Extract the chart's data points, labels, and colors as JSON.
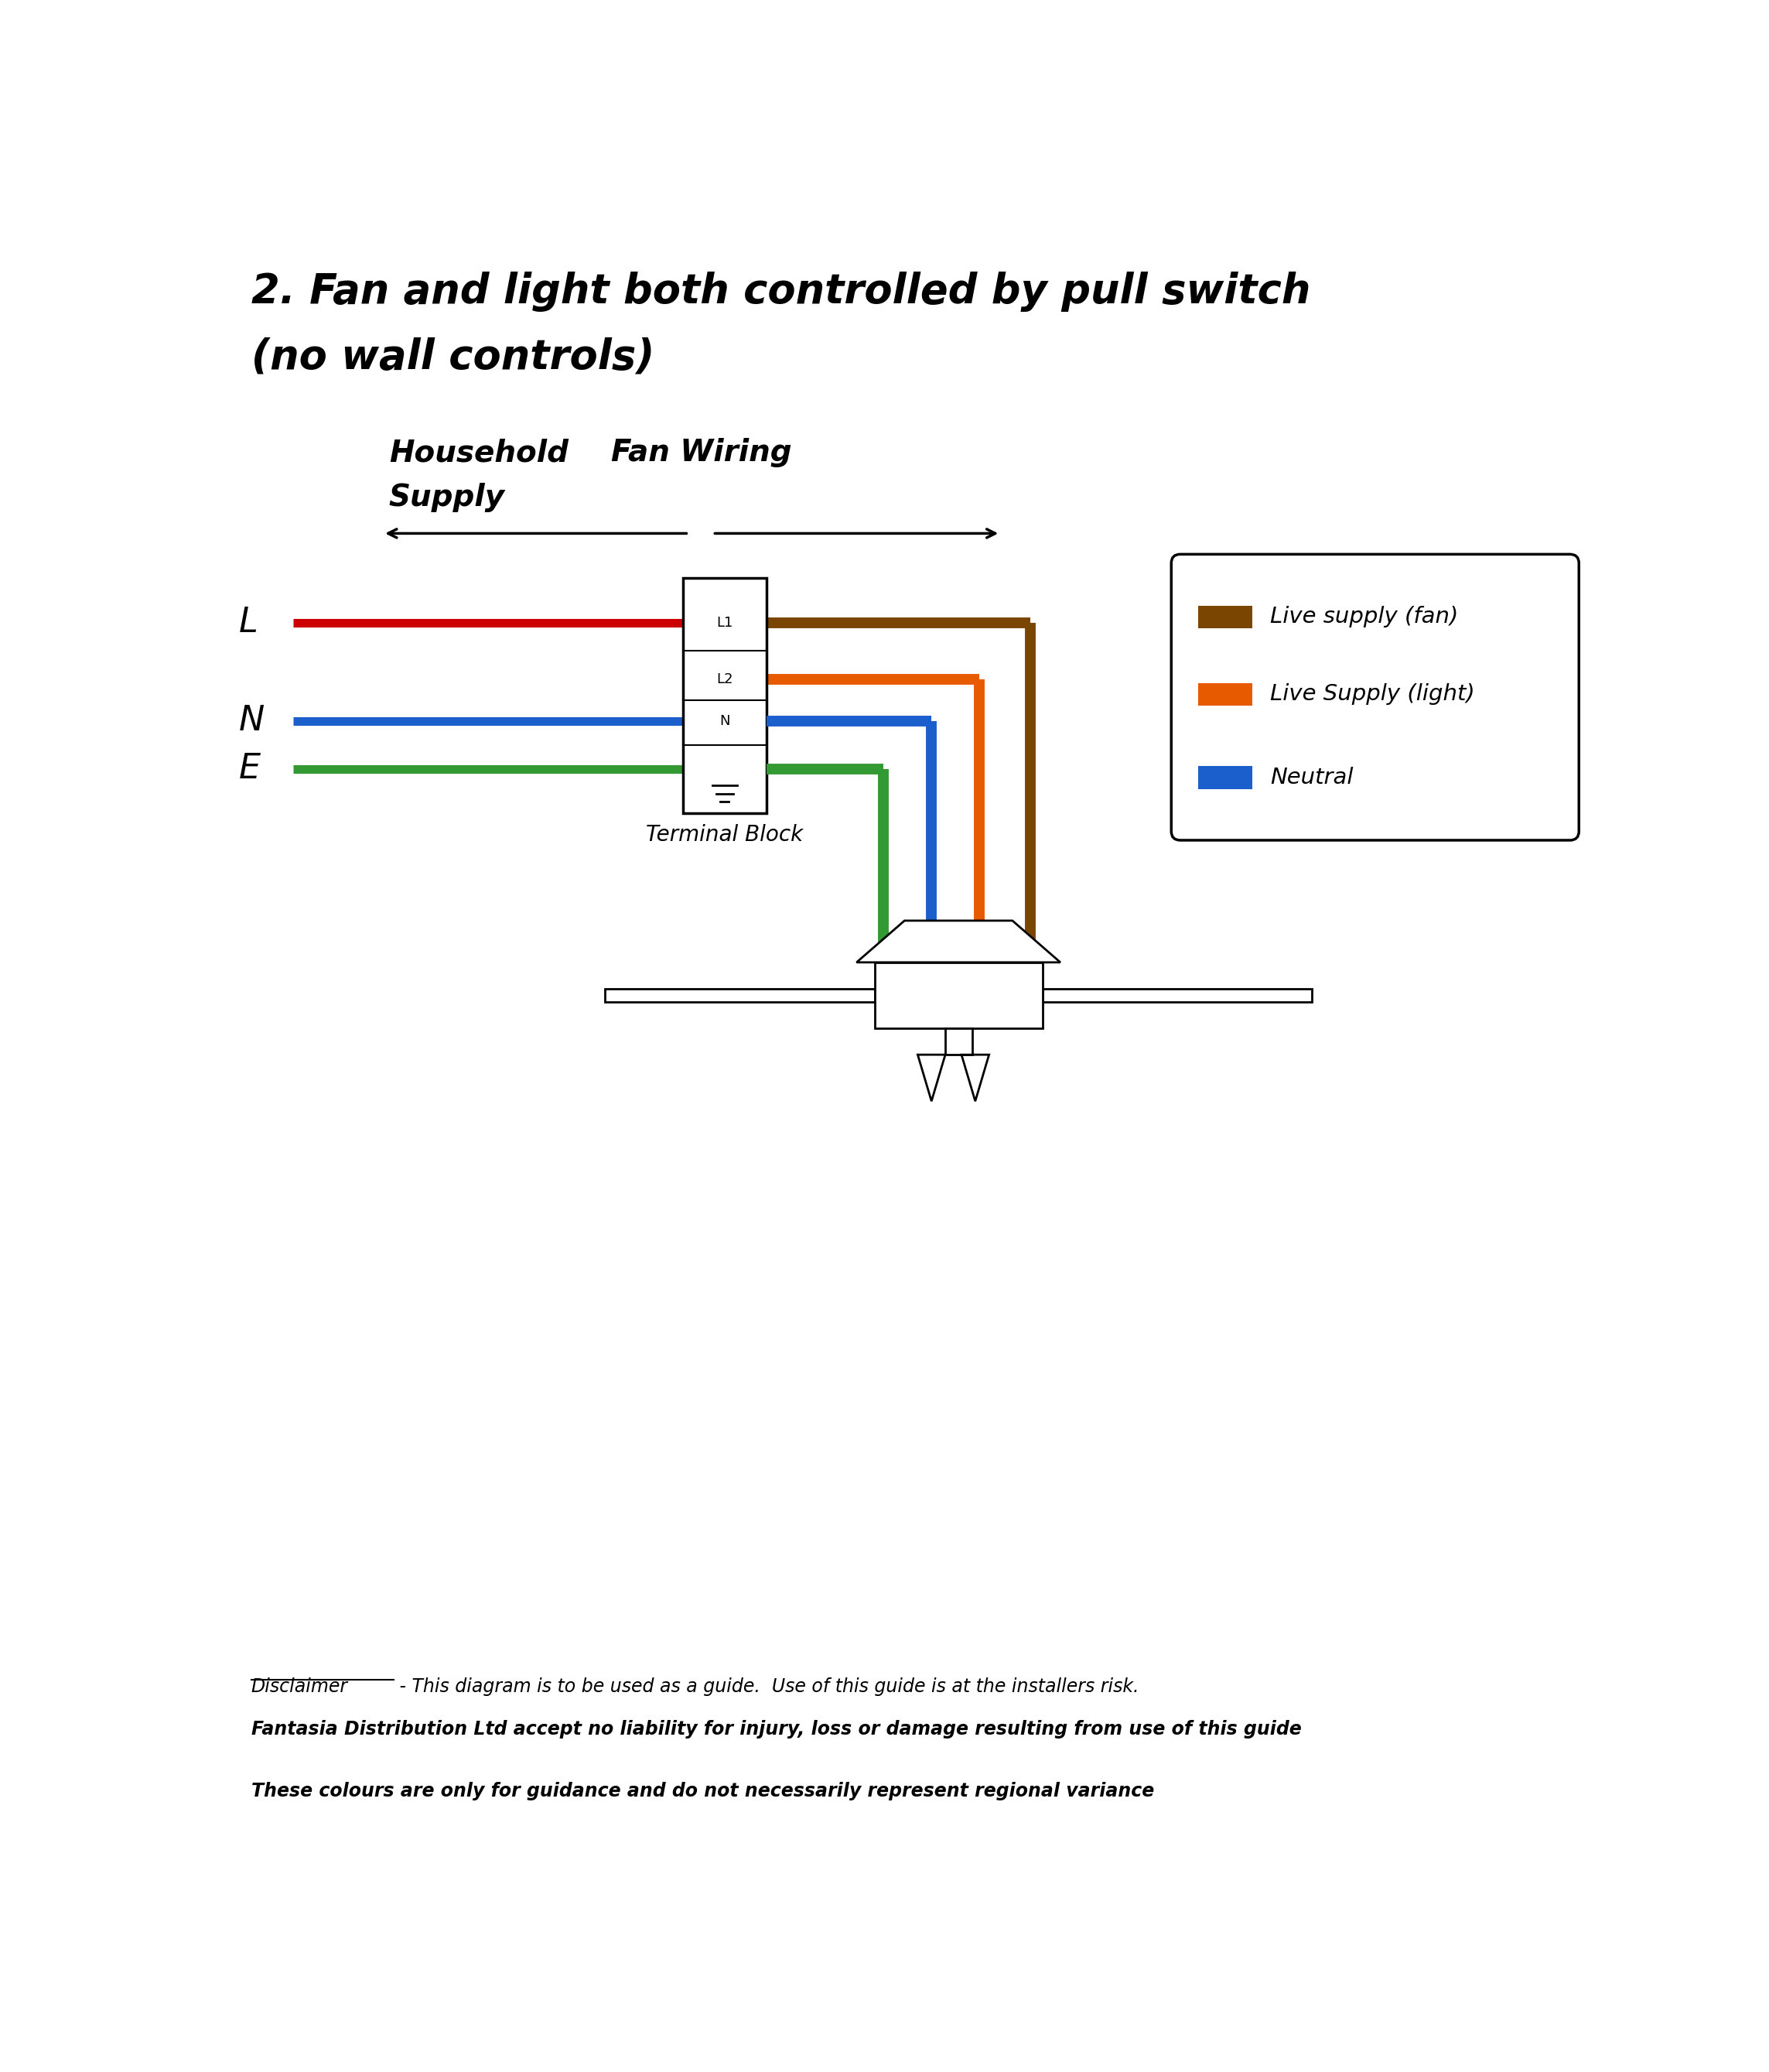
{
  "title_line1": "2. Fan and light both controlled by pull switch",
  "title_line2": "(no wall controls)",
  "title_fontsize": 38,
  "bg_color": "#ffffff",
  "wire_red": "#cc0000",
  "wire_blue": "#1a5fcc",
  "wire_green": "#339933",
  "wire_brown": "#7a4500",
  "wire_orange": "#e85a00",
  "legend_labels": [
    "Live supply (fan)",
    "Live Supply (light)",
    "Neutral"
  ],
  "legend_colors": [
    "#7a4500",
    "#e85a00",
    "#1a5fcc"
  ],
  "disclaimer1_prefix": "Disclaimer",
  "disclaimer1_rest": " - This diagram is to be used as a guide.  Use of this guide is at the installers risk.",
  "disclaimer2": "Fantasia Distribution Ltd accept no liability for injury, loss or damage resulting from use of this guide",
  "disclaimer3": "These colours are only for guidance and do not necessarily represent regional variance"
}
